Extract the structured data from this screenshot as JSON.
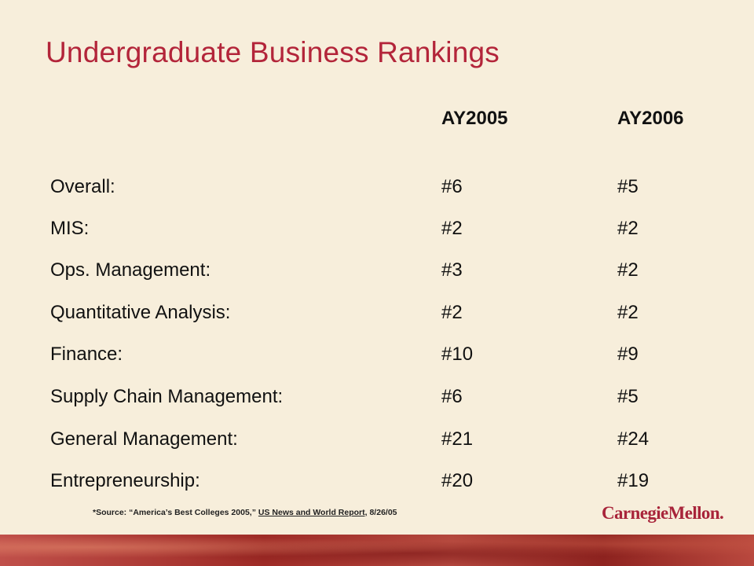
{
  "title": "Undergraduate Business Rankings",
  "columns": [
    "AY2005",
    "AY2006"
  ],
  "rows": [
    {
      "label": "Overall:",
      "ay2005": "#6",
      "ay2006": "#5"
    },
    {
      "label": "MIS:",
      "ay2005": "#2",
      "ay2006": "#2"
    },
    {
      "label": "Ops. Management:",
      "ay2005": "#3",
      "ay2006": "#2"
    },
    {
      "label": "Quantitative Analysis:",
      "ay2005": "#2",
      "ay2006": "#2"
    },
    {
      "label": "Finance:",
      "ay2005": "#10",
      "ay2006": "#9"
    },
    {
      "label": "Supply Chain Management:",
      "ay2005": "#6",
      "ay2006": "#5"
    },
    {
      "label": "General Management:",
      "ay2005": "#21",
      "ay2006": "#24"
    },
    {
      "label": "Entrepreneurship:",
      "ay2005": "#20",
      "ay2006": "#19"
    }
  ],
  "source": {
    "prefix": "*Source:  “America’s Best Colleges  2005,”",
    "publication": "US News and World Report,",
    "date": "8/26/05"
  },
  "logo_text": "CarnegieMellon.",
  "colors": {
    "background": "#f7eedb",
    "title": "#b3253a",
    "logo": "#a8243a",
    "footer_band": "#9e2b26"
  }
}
